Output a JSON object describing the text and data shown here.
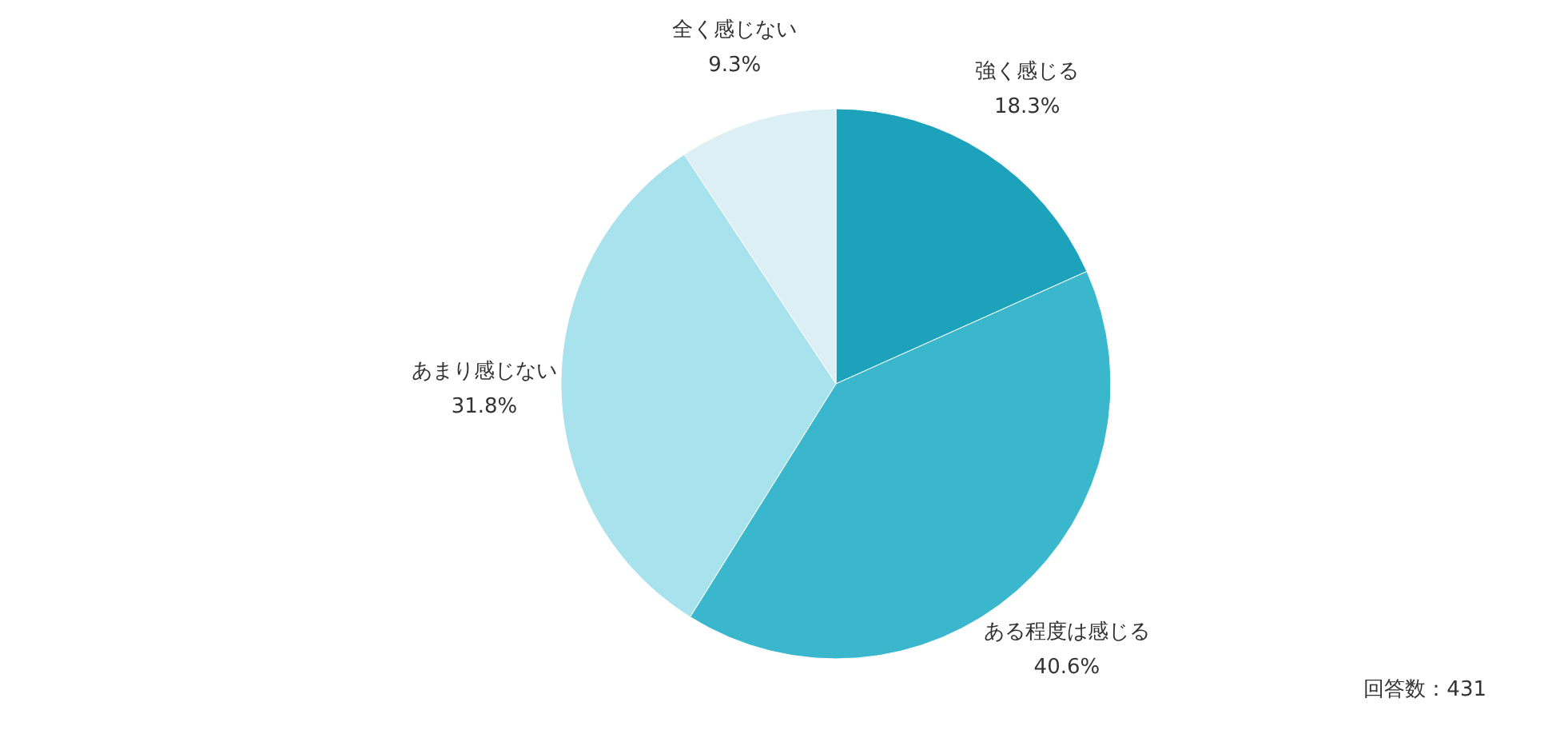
{
  "chart_data": {
    "type": "pie",
    "categories": [
      "強く感じる",
      "ある程度は感じる",
      "あまり感じない",
      "全く感じない"
    ],
    "values": [
      18.3,
      40.6,
      31.8,
      9.3
    ],
    "value_labels": [
      "18.3%",
      "40.6%",
      "31.8%",
      "9.3%"
    ],
    "colors": [
      "#1ca3bb",
      "#3bb7cd",
      "#a8e2ec",
      "#dceff4"
    ],
    "annotations": [
      "回答数：431"
    ]
  }
}
